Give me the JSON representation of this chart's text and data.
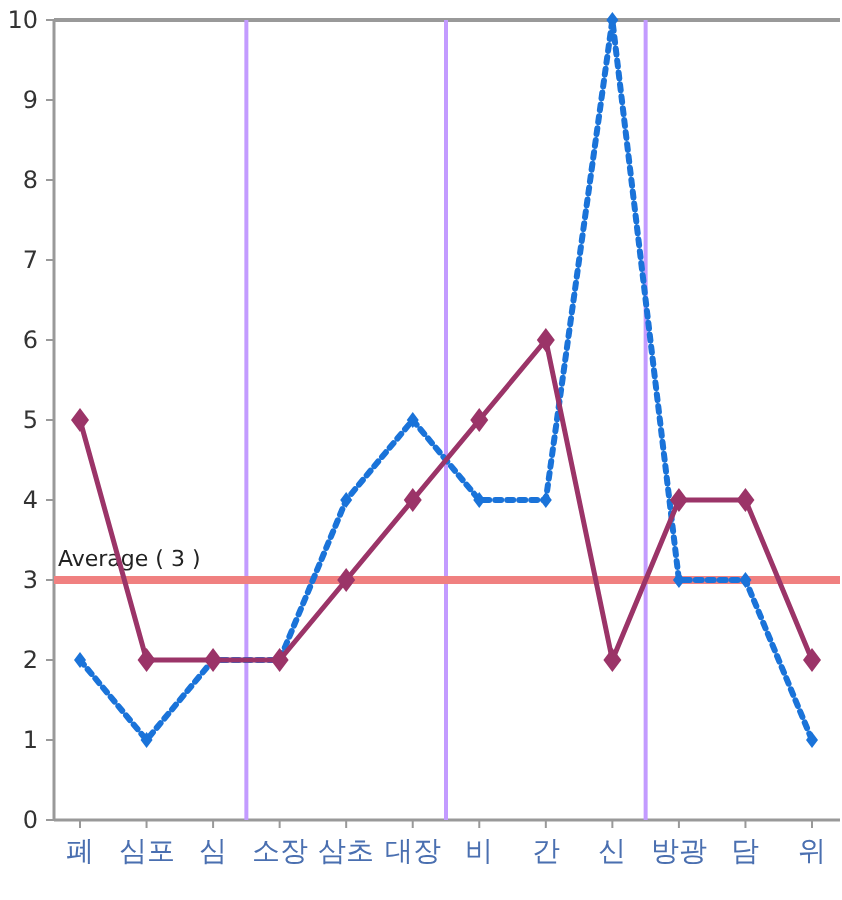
{
  "chart_data": {
    "type": "line",
    "categories": [
      "폐",
      "심포",
      "심",
      "소장",
      "삼초",
      "대장",
      "비",
      "간",
      "신",
      "방광",
      "담",
      "위"
    ],
    "series": [
      {
        "color": "#9b3468",
        "values": [
          5,
          2,
          2,
          2,
          3,
          4,
          5,
          6,
          2,
          4,
          4,
          2
        ],
        "line_style": "solid"
      },
      {
        "color": "#1a73d9",
        "values": [
          2,
          1,
          2,
          2,
          4,
          5,
          4,
          4,
          10,
          3,
          3,
          1
        ],
        "line_style": "dotted"
      }
    ],
    "ylim": [
      0,
      10
    ],
    "yticks": [
      0,
      1,
      2,
      3,
      4,
      5,
      6,
      7,
      8,
      9,
      10
    ],
    "marker": "diamond",
    "grid": false,
    "ref_lines": [
      {
        "axis": "y",
        "value": 3,
        "label": "Average ( 3 )",
        "color": "#f08080"
      }
    ]
  }
}
